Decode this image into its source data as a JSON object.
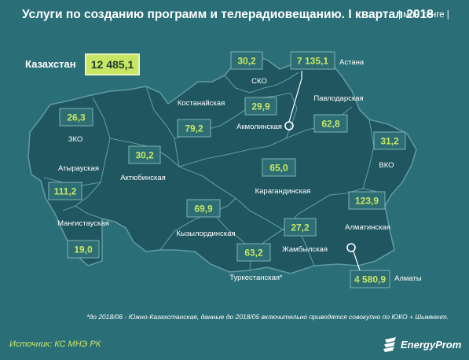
{
  "header": {
    "title": "Услуги по созданию программ и телерадиовещанию. I квартал 2018",
    "unit": "| млн тенге |"
  },
  "country": {
    "label": "Казахстан",
    "value": "12 485,1"
  },
  "chart_data": {
    "type": "map",
    "regions": [
      {
        "name": "ЗКО",
        "value": "26,3"
      },
      {
        "name": "Атырауская",
        "value": "111,2"
      },
      {
        "name": "Мангистауская",
        "value": "19,0"
      },
      {
        "name": "Актюбинская",
        "value": "30,2"
      },
      {
        "name": "Костанайская",
        "value": "79,2"
      },
      {
        "name": "СКО",
        "value": "30,2"
      },
      {
        "name": "Акмолинская",
        "value": "29,9"
      },
      {
        "name": "Астана",
        "value": "7 135,1"
      },
      {
        "name": "Павлодарская",
        "value": "62,8"
      },
      {
        "name": "ВКО",
        "value": "31,2"
      },
      {
        "name": "Карагандинская",
        "value": "65,0"
      },
      {
        "name": "Кызылординская",
        "value": "69,9"
      },
      {
        "name": "Туркестанская*",
        "value": "63,2"
      },
      {
        "name": "Жамбылская",
        "value": "27,2"
      },
      {
        "name": "Алматинская",
        "value": "123,9"
      },
      {
        "name": "Алматы",
        "value": "4 580,9"
      }
    ]
  },
  "footnote": "*до 2018/06 - Южно-Казахстанская, данные до 2018/05 включительно приводятся совокупно по ЮКО + Шымкент.",
  "source": "Источник: КС МНЭ РК",
  "brand": {
    "name": "EnergyProm"
  },
  "colors": {
    "background": "#2a6e78",
    "land": "#1f5660",
    "border": "#5f9aa2",
    "label_box": "#2c6e74",
    "value": "#c8e664"
  }
}
